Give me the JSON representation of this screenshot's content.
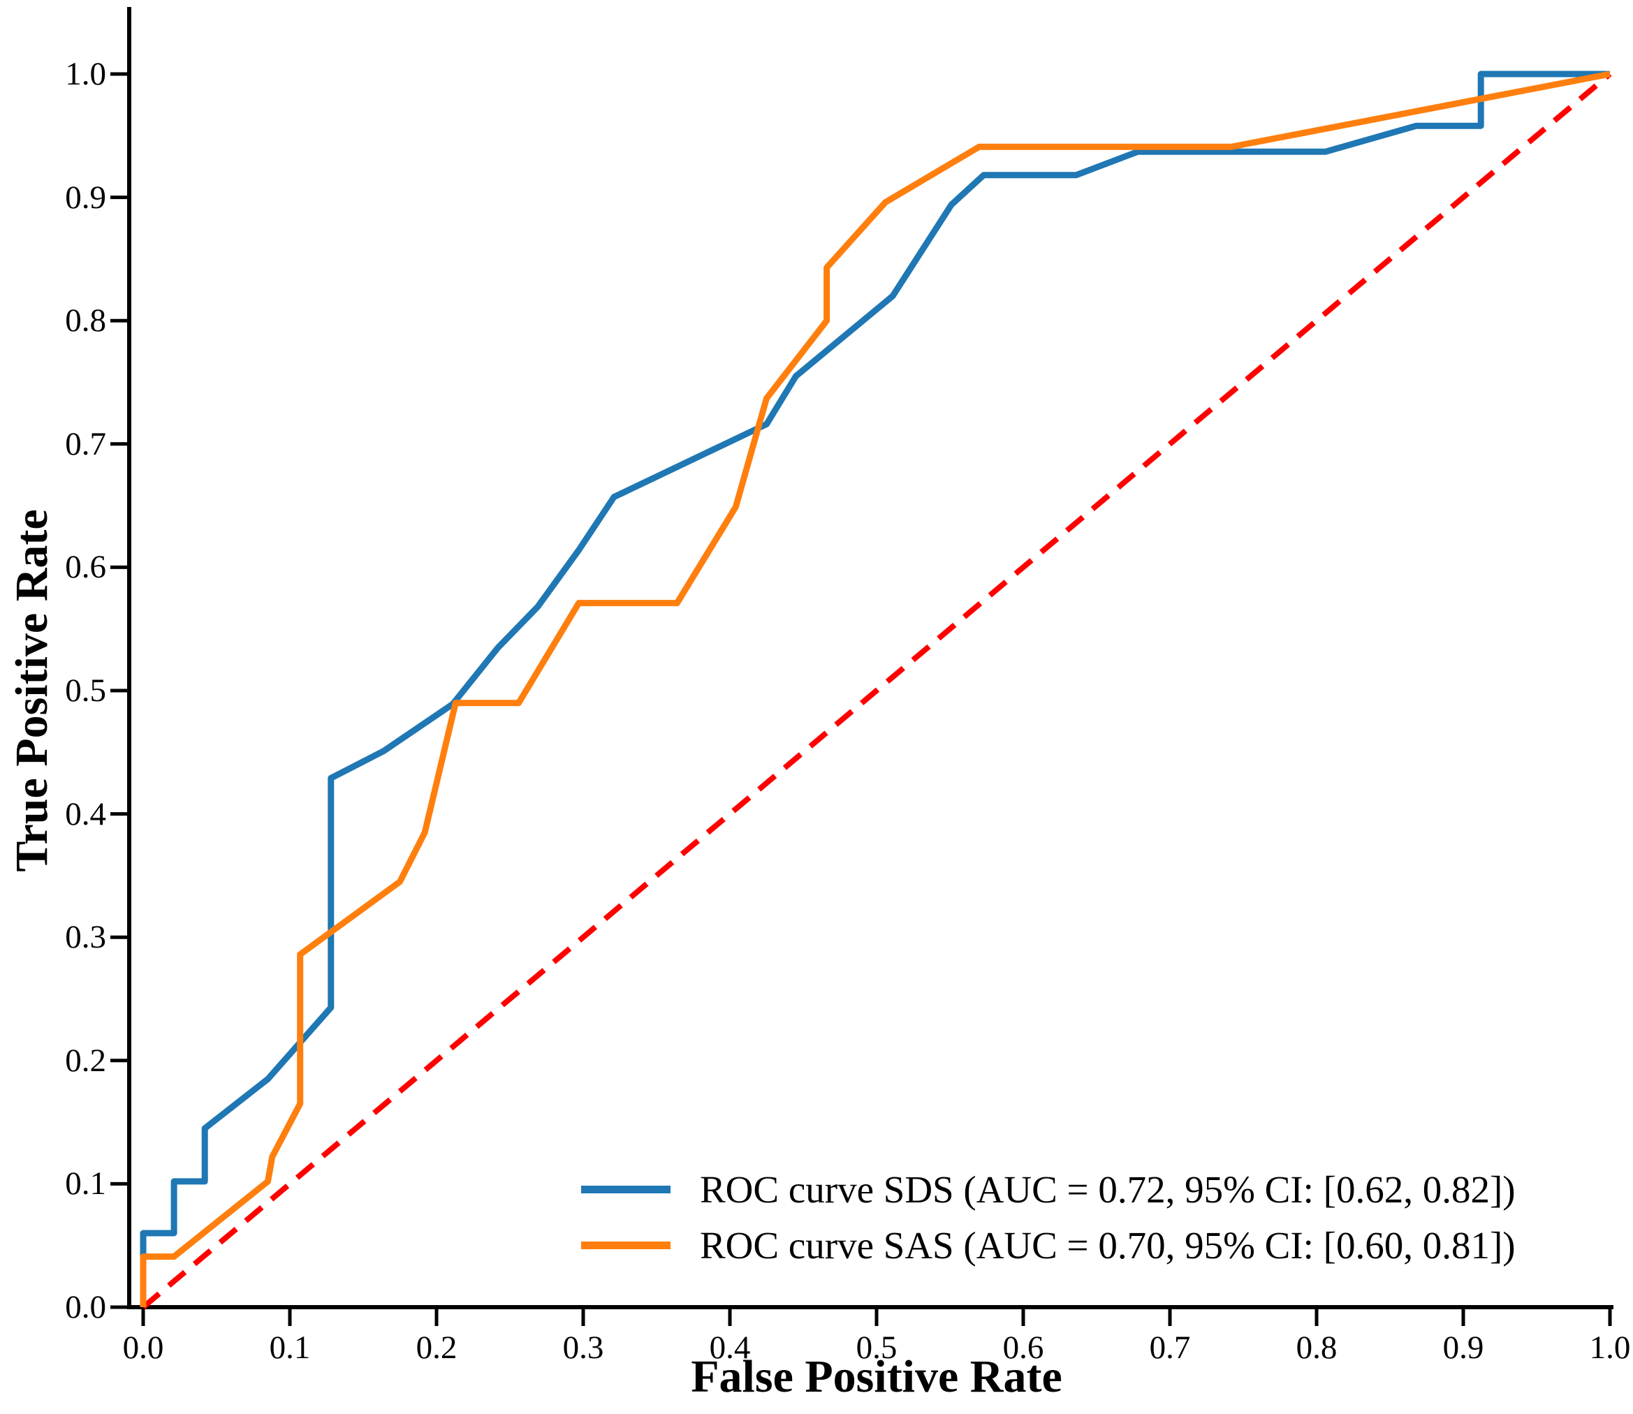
{
  "chart_data": {
    "type": "line",
    "title": "",
    "xlabel": "False Positive Rate",
    "ylabel": "True Positive Rate",
    "xlim": [
      0.0,
      1.0
    ],
    "ylim": [
      0.0,
      1.06
    ],
    "grid": false,
    "legend_position": "lower right",
    "x_ticks": [
      0.0,
      0.1,
      0.2,
      0.3,
      0.4,
      0.5,
      0.6,
      0.7,
      0.8,
      0.9,
      1.0
    ],
    "y_ticks": [
      0.0,
      0.1,
      0.2,
      0.3,
      0.4,
      0.5,
      0.6,
      0.7,
      0.8,
      0.9,
      1.0
    ],
    "x_tick_labels": [
      "0.0",
      "0.1",
      "0.2",
      "0.3",
      "0.4",
      "0.5",
      "0.6",
      "0.7",
      "0.8",
      "0.9",
      "1.0"
    ],
    "y_tick_labels": [
      "0.0",
      "0.1",
      "0.2",
      "0.3",
      "0.4",
      "0.5",
      "0.6",
      "0.7",
      "0.8",
      "0.9",
      "1.0"
    ],
    "axis_color": "#000000",
    "series": [
      {
        "id": "sds",
        "label": "ROC curve SDS (AUC = 0.72, 95% CI: [0.62, 0.82])",
        "auc": 0.72,
        "ci_95": [
          0.62,
          0.82
        ],
        "color": "#1f77b4",
        "line_style": "solid",
        "in_legend": true,
        "draw_order": 1,
        "points": [
          [
            0.0,
            0.0
          ],
          [
            0.0,
            0.06
          ],
          [
            0.021,
            0.06
          ],
          [
            0.021,
            0.102
          ],
          [
            0.042,
            0.102
          ],
          [
            0.042,
            0.145
          ],
          [
            0.085,
            0.185
          ],
          [
            0.128,
            0.243
          ],
          [
            0.128,
            0.429
          ],
          [
            0.164,
            0.451
          ],
          [
            0.211,
            0.489
          ],
          [
            0.242,
            0.535
          ],
          [
            0.269,
            0.568
          ],
          [
            0.297,
            0.614
          ],
          [
            0.321,
            0.657
          ],
          [
            0.425,
            0.716
          ],
          [
            0.445,
            0.755
          ],
          [
            0.511,
            0.82
          ],
          [
            0.551,
            0.894
          ],
          [
            0.573,
            0.918
          ],
          [
            0.636,
            0.918
          ],
          [
            0.678,
            0.937
          ],
          [
            0.806,
            0.937
          ],
          [
            0.868,
            0.958
          ],
          [
            0.912,
            0.958
          ],
          [
            0.912,
            1.0
          ],
          [
            1.0,
            1.0
          ]
        ]
      },
      {
        "id": "sas",
        "label": "ROC curve SAS (AUC = 0.70, 95% CI: [0.60, 0.81])",
        "auc": 0.7,
        "ci_95": [
          0.6,
          0.81
        ],
        "color": "#ff7f0e",
        "line_style": "solid",
        "in_legend": true,
        "draw_order": 2,
        "points": [
          [
            0.0,
            0.0
          ],
          [
            0.0,
            0.041
          ],
          [
            0.021,
            0.041
          ],
          [
            0.085,
            0.102
          ],
          [
            0.088,
            0.122
          ],
          [
            0.107,
            0.165
          ],
          [
            0.107,
            0.286
          ],
          [
            0.175,
            0.345
          ],
          [
            0.192,
            0.385
          ],
          [
            0.213,
            0.49
          ],
          [
            0.256,
            0.49
          ],
          [
            0.297,
            0.571
          ],
          [
            0.364,
            0.571
          ],
          [
            0.404,
            0.649
          ],
          [
            0.425,
            0.737
          ],
          [
            0.466,
            0.8
          ],
          [
            0.466,
            0.843
          ],
          [
            0.506,
            0.896
          ],
          [
            0.57,
            0.941
          ],
          [
            0.742,
            0.941
          ],
          [
            1.0,
            1.0
          ]
        ]
      },
      {
        "id": "chance",
        "label": "",
        "color": "#ff0000",
        "line_style": "dashed",
        "in_legend": false,
        "draw_order": 0,
        "points": [
          [
            0.0,
            0.0
          ],
          [
            1.0,
            1.0
          ]
        ]
      }
    ]
  }
}
